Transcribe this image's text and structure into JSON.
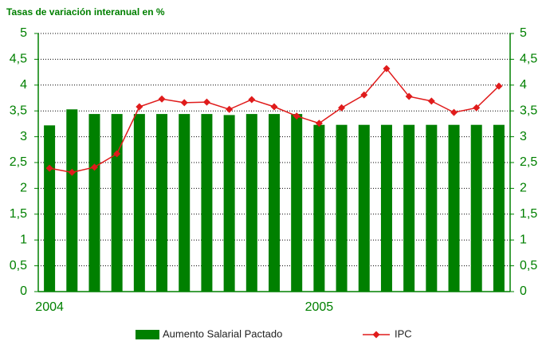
{
  "chart_data": {
    "type": "bar_line",
    "title": "Tasas de variación interanual en %",
    "categories": [
      "2004",
      null,
      null,
      null,
      null,
      null,
      null,
      null,
      null,
      null,
      null,
      null,
      "2005",
      null,
      null,
      null,
      null,
      null,
      null,
      null,
      null
    ],
    "series": [
      {
        "name": "Aumento Salarial Pactado",
        "type": "bar",
        "color": "#008000",
        "values": [
          3.22,
          3.53,
          3.44,
          3.44,
          3.44,
          3.44,
          3.44,
          3.44,
          3.42,
          3.44,
          3.44,
          3.44,
          3.23,
          3.23,
          3.23,
          3.23,
          3.23,
          3.23,
          3.23,
          3.23,
          3.23
        ]
      },
      {
        "name": "IPC",
        "type": "line",
        "color": "#e01b1b",
        "values": [
          2.39,
          2.31,
          2.41,
          2.67,
          3.58,
          3.73,
          3.66,
          3.67,
          3.53,
          3.72,
          3.58,
          3.4,
          3.26,
          3.56,
          3.81,
          4.32,
          3.78,
          3.69,
          3.47,
          3.56,
          3.98
        ]
      }
    ],
    "ylim": [
      0,
      5
    ],
    "yticks": [
      0,
      {
        "value": 0.5,
        "label": "0,5"
      },
      1,
      {
        "value": 1.5,
        "label": "1,5"
      },
      2,
      {
        "value": 2.5,
        "label": "2,5"
      },
      3,
      {
        "value": 3.5,
        "label": "3,5"
      },
      4,
      {
        "value": 4.5,
        "label": "4,5"
      },
      5
    ],
    "y2lim": [
      0,
      5
    ],
    "y2ticks": [
      0,
      {
        "value": 0.5,
        "label": "0,5"
      },
      1,
      {
        "value": 1.5,
        "label": "1,5"
      },
      2,
      {
        "value": 2.5,
        "label": "2,5"
      },
      3,
      {
        "value": 3.5,
        "label": "3,5"
      },
      4,
      {
        "value": 4.5,
        "label": "4,5"
      },
      5
    ],
    "grid": true,
    "legend": "bottom"
  }
}
